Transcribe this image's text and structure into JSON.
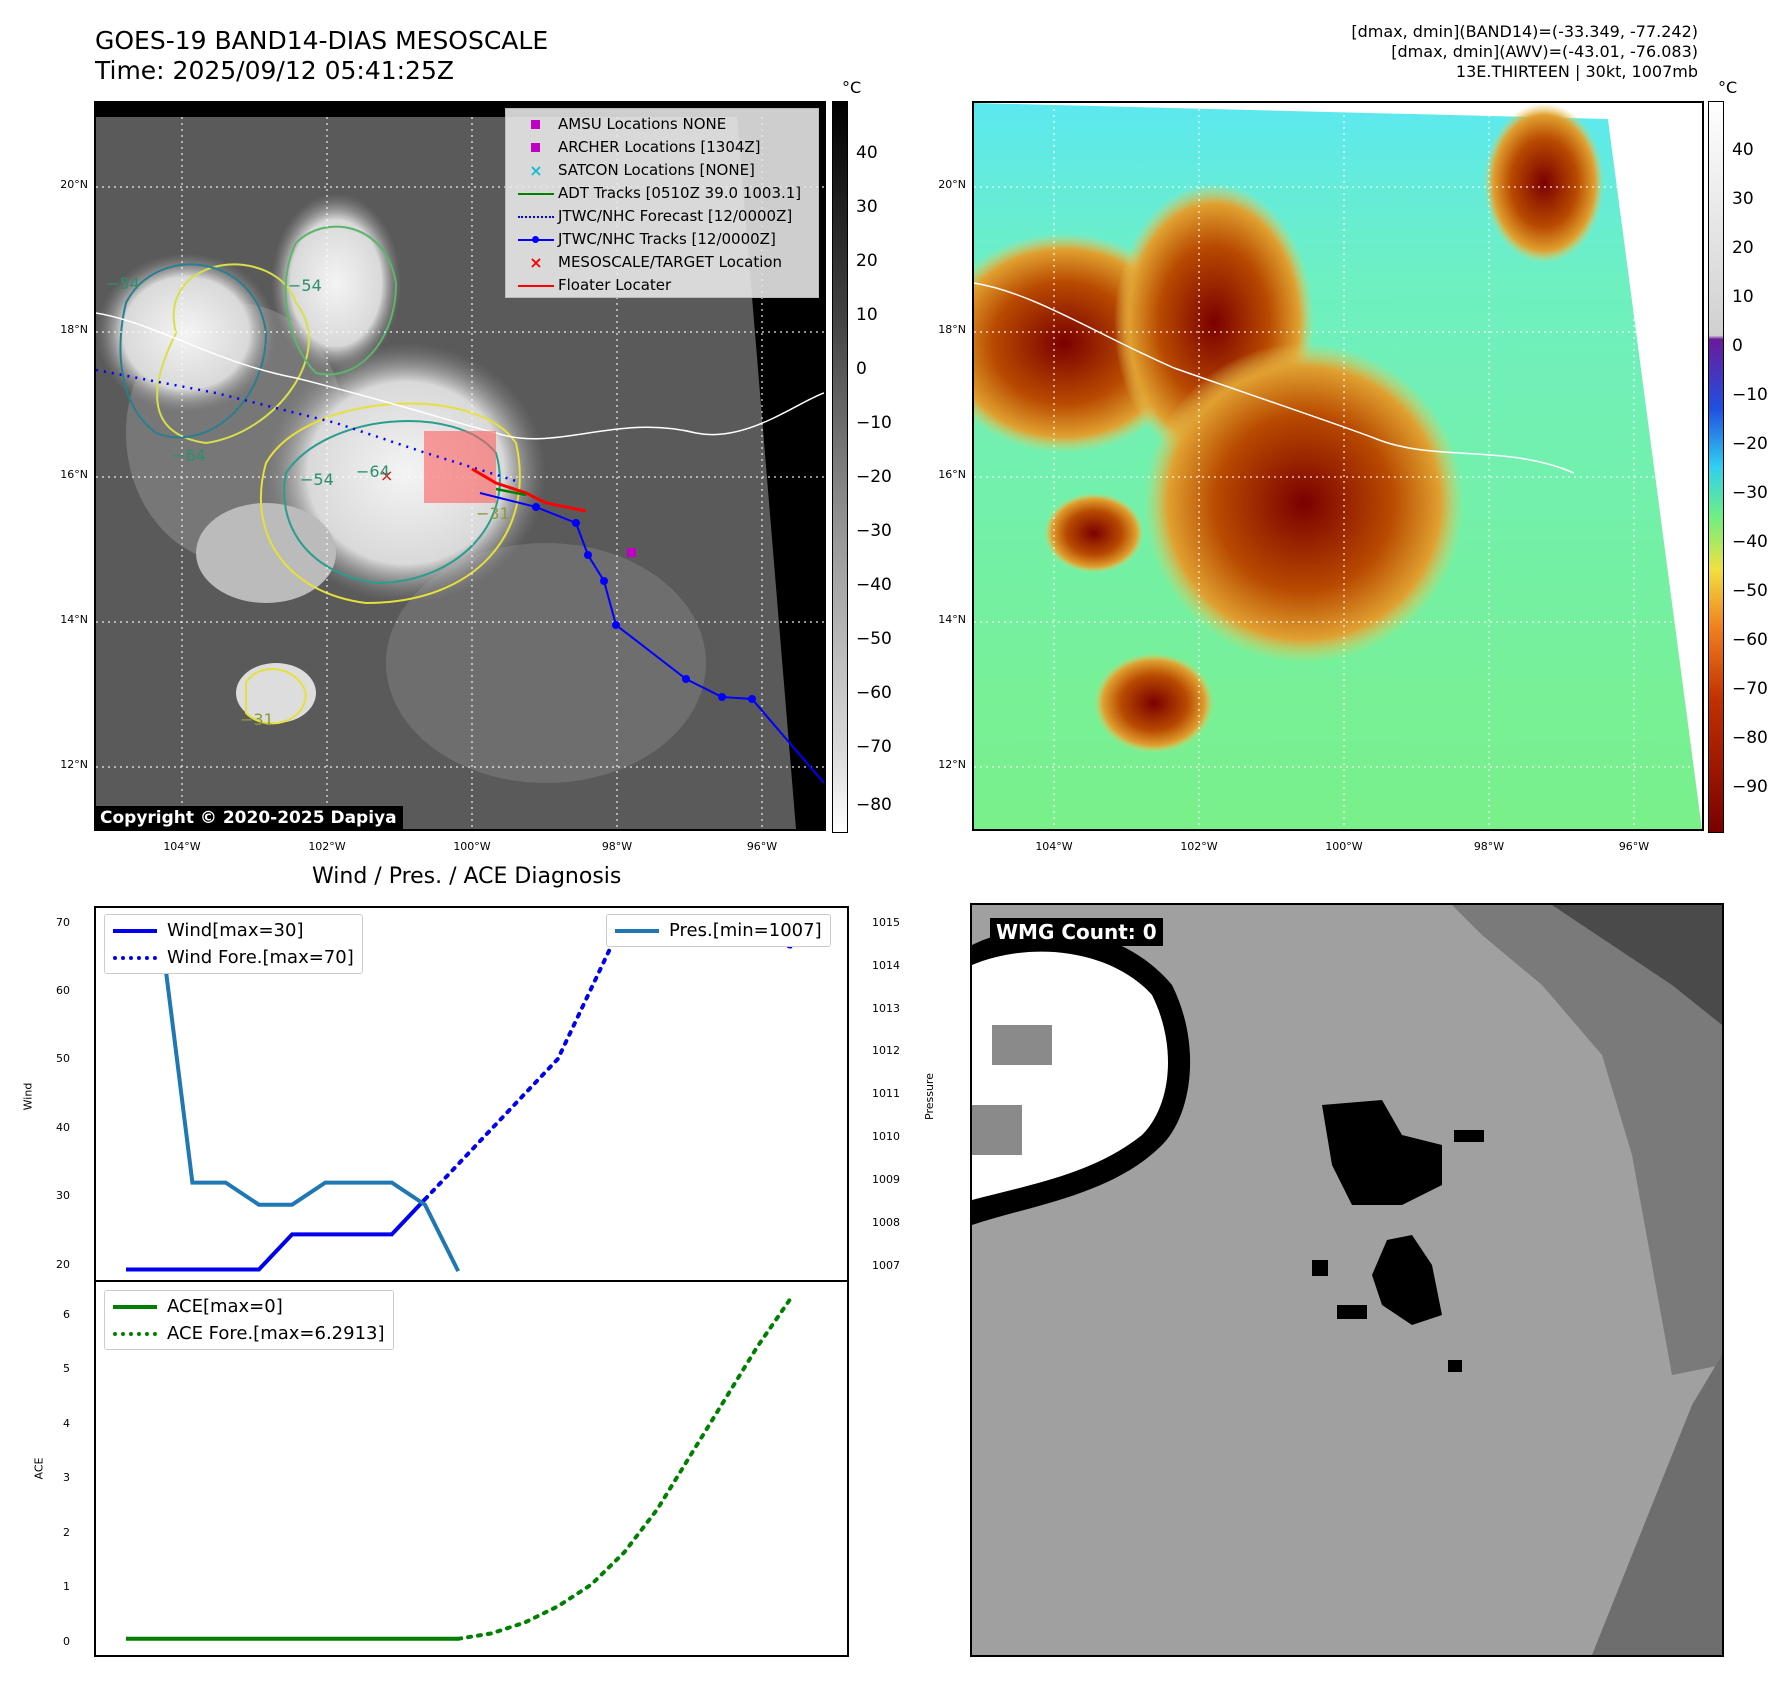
{
  "header": {
    "title_line1": "GOES-19 BAND14-DIAS MESOSCALE",
    "title_line2": "Time: 2025/09/12 05:41:25Z",
    "right_line1": "[dmax, dmin](BAND14)=(-33.349, -77.242)",
    "right_line2": "[dmax, dmin](AWV)=(-43.01, -76.083)",
    "right_line3": "13E.THIRTEEN | 30kt, 1007mb"
  },
  "map": {
    "lat_ticks": [
      "20°N",
      "18°N",
      "16°N",
      "14°N",
      "12°N"
    ],
    "lon_ticks": [
      "104°W",
      "102°W",
      "100°W",
      "98°W",
      "96°W"
    ],
    "copyright": "Copyright © 2020-2025 Dapiya",
    "contour_labels": [
      "−54",
      "−54",
      "−64",
      "−64",
      "−54",
      "−31",
      "−31"
    ],
    "legend": [
      {
        "label": "AMSU Locations NONE",
        "symbol": "square",
        "color": "#c000c0"
      },
      {
        "label": "ARCHER Locations [1304Z]",
        "symbol": "square",
        "color": "#c000c0"
      },
      {
        "label": "SATCON Locations [NONE]",
        "symbol": "x",
        "color": "#17becf"
      },
      {
        "label": "ADT Tracks [0510Z 39.0 1003.1]",
        "symbol": "line",
        "color": "#008000"
      },
      {
        "label": "JTWC/NHC Forecast [12/0000Z]",
        "symbol": "dotted",
        "color": "#0000ff"
      },
      {
        "label": "JTWC/NHC Tracks [12/0000Z]",
        "symbol": "line-dot",
        "color": "#0000ff"
      },
      {
        "label": "MESOSCALE/TARGET Location",
        "symbol": "x",
        "color": "#ff0000"
      },
      {
        "label": "Floater Locater",
        "symbol": "line",
        "color": "#ff0000"
      }
    ],
    "colorbar_left": {
      "unit": "°C",
      "ticks": [
        "40",
        "30",
        "20",
        "10",
        "0",
        "−10",
        "−20",
        "−30",
        "−40",
        "−50",
        "−60",
        "−70",
        "−80"
      ]
    },
    "colorbar_right": {
      "unit": "°C",
      "ticks": [
        "40",
        "30",
        "20",
        "10",
        "0",
        "−10",
        "−20",
        "−30",
        "−40",
        "−50",
        "−60",
        "−70",
        "−80",
        "−90"
      ]
    }
  },
  "wind_panel": {
    "title": "Wind / Pres. / ACE Diagnosis",
    "ylabel_left": "Wind",
    "ylabel_right": "Pressure",
    "yticks_left": [
      "70",
      "60",
      "50",
      "40",
      "30",
      "20"
    ],
    "yticks_right": [
      "1015",
      "1014",
      "1013",
      "1012",
      "1011",
      "1010",
      "1009",
      "1008",
      "1007"
    ],
    "legend_left": [
      "Wind[max=30]",
      "Wind Fore.[max=70]"
    ],
    "legend_right": [
      "Pres.[min=1007]"
    ]
  },
  "ace_panel": {
    "ylabel": "ACE",
    "yticks": [
      "6",
      "5",
      "4",
      "3",
      "2",
      "1",
      "0"
    ],
    "legend": [
      "ACE[max=0]",
      "ACE Fore.[max=6.2913]"
    ]
  },
  "wmg": {
    "label": "WMG Count: 0"
  },
  "chart_data": [
    {
      "type": "line",
      "title": "Wind / Pres. / ACE Diagnosis",
      "ylabel": "Wind",
      "ylim": [
        18.5,
        71.5
      ],
      "y2label": "Pressure",
      "y2lim": [
        1006.8,
        1015.2
      ],
      "series": [
        {
          "name": "Wind[max=30]",
          "axis": "left",
          "color": "#0000ee",
          "style": "solid",
          "x": [
            0,
            1,
            2,
            3,
            4,
            5,
            6,
            7,
            8,
            9
          ],
          "y": [
            20,
            20,
            20,
            20,
            20,
            25,
            25,
            25,
            25,
            30
          ]
        },
        {
          "name": "Wind Fore.[max=70]",
          "axis": "left",
          "color": "#0000ee",
          "style": "dotted",
          "x": [
            9,
            10,
            11,
            12,
            13,
            14,
            15,
            16,
            17,
            18,
            19,
            20
          ],
          "y": [
            30,
            35,
            40,
            45,
            50,
            60,
            70,
            70,
            70,
            70,
            67,
            66
          ]
        },
        {
          "name": "Pres.[min=1007]",
          "axis": "right",
          "color": "#1f77b4",
          "style": "solid",
          "x": [
            0,
            1,
            2,
            3,
            4,
            5,
            6,
            7,
            8,
            9,
            10
          ],
          "y": [
            1015,
            1015,
            1009,
            1009,
            1008.5,
            1008.5,
            1009,
            1009,
            1009,
            1008.5,
            1007
          ]
        }
      ]
    },
    {
      "type": "line",
      "ylabel": "ACE",
      "ylim": [
        -0.3,
        6.6
      ],
      "series": [
        {
          "name": "ACE[max=0]",
          "color": "#008000",
          "style": "solid",
          "x": [
            0,
            10
          ],
          "y": [
            0,
            0
          ]
        },
        {
          "name": "ACE Fore.[max=6.2913]",
          "color": "#008000",
          "style": "dotted",
          "x": [
            10,
            11,
            12,
            13,
            14,
            15,
            16,
            17,
            18,
            19,
            20
          ],
          "y": [
            0,
            0.1,
            0.3,
            0.6,
            1.0,
            1.6,
            2.4,
            3.4,
            4.4,
            5.4,
            6.29
          ]
        }
      ]
    }
  ]
}
